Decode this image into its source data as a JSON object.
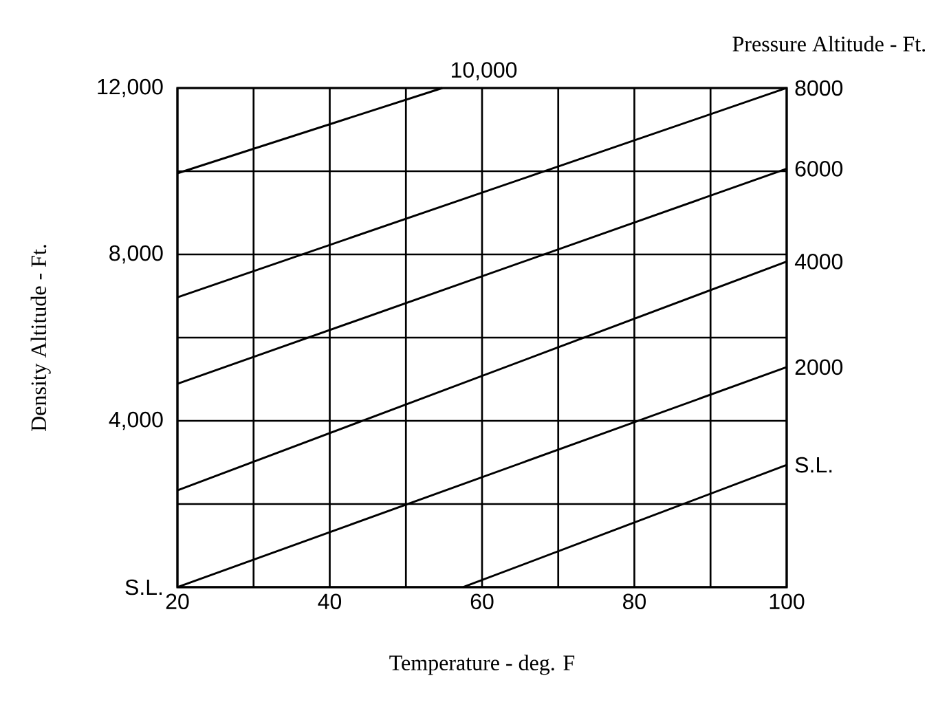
{
  "chart_data": {
    "type": "line",
    "legend_title": "Pressure Altitude - Ft.",
    "xlabel": "Temperature  - deg. F",
    "ylabel": "Density Altitude  - Ft.",
    "xlim": [
      20,
      100
    ],
    "ylim": [
      0,
      12000
    ],
    "xticks": [
      20,
      {
        "value": 30,
        "label": null
      },
      40,
      {
        "value": 50,
        "label": null
      },
      60,
      {
        "value": 70,
        "label": null
      },
      80,
      {
        "value": 90,
        "label": null
      },
      100
    ],
    "yticks": [
      {
        "value": 0,
        "label": "S.L."
      },
      {
        "value": 2000,
        "label": null
      },
      {
        "value": 4000,
        "label": "4,000"
      },
      {
        "value": 6000,
        "label": null
      },
      {
        "value": 8000,
        "label": "8,000"
      },
      {
        "value": 10000,
        "label": null
      },
      {
        "value": 12000,
        "label": "12,000"
      }
    ],
    "grid": true,
    "marker": "none",
    "line_style": "solid",
    "series": [
      {
        "name": "S.L.",
        "color": "#000000",
        "x": [
          57.5,
          100
        ],
        "values": [
          0,
          2940
        ]
      },
      {
        "name": "2000",
        "color": "#000000",
        "x": [
          20,
          100
        ],
        "values": [
          0,
          5290
        ]
      },
      {
        "name": "4000",
        "color": "#000000",
        "x": [
          20,
          100
        ],
        "values": [
          2330,
          7830
        ]
      },
      {
        "name": "6000",
        "color": "#000000",
        "x": [
          20,
          100
        ],
        "values": [
          4890,
          10060
        ]
      },
      {
        "name": "8000",
        "color": "#000000",
        "x": [
          20,
          100
        ],
        "values": [
          6970,
          12000
        ]
      },
      {
        "name": "10,000",
        "color": "#000000",
        "x": [
          20,
          54.8
        ],
        "values": [
          9950,
          12000
        ]
      }
    ]
  }
}
